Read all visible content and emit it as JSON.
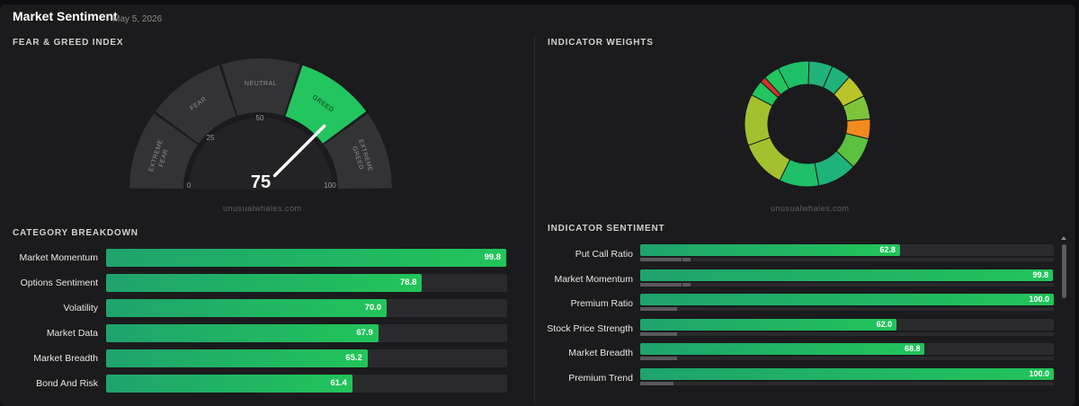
{
  "header": {
    "title": "Market Sentiment",
    "date": "- May 5, 2026"
  },
  "sections": {
    "fear_greed": "FEAR & GREED INDEX",
    "weights": "INDICATOR WEIGHTS",
    "category": "CATEGORY BREAKDOWN",
    "sentiment": "INDICATOR SENTIMENT"
  },
  "watermark": "unusualwhales.com",
  "gauge": {
    "value": 75,
    "value_label": "75",
    "scale": [
      "0",
      "25",
      "50",
      "100"
    ],
    "segments": [
      {
        "label": [
          "EXTREME",
          "FEAR"
        ],
        "color": "#333336"
      },
      {
        "label": [
          "FEAR"
        ],
        "color": "#333336"
      },
      {
        "label": [
          "NEUTRAL"
        ],
        "color": "#333336"
      },
      {
        "label": [
          "GREED"
        ],
        "color": "#22c55e"
      },
      {
        "label": [
          "EXTREME",
          "GREED"
        ],
        "color": "#333336"
      }
    ]
  },
  "chart_data": [
    {
      "type": "gauge",
      "title": "FEAR & GREED INDEX",
      "value": 75,
      "range": [
        0,
        100
      ],
      "zones": [
        "EXTREME FEAR",
        "FEAR",
        "NEUTRAL",
        "GREED",
        "EXTREME GREED"
      ],
      "active_zone": "GREED"
    },
    {
      "type": "pie",
      "title": "INDICATOR WEIGHTS",
      "slices": [
        {
          "value": 13,
          "color": "#a3c02e"
        },
        {
          "value": 4,
          "color": "#22c55e"
        },
        {
          "value": 1.5,
          "color": "#d0342c"
        },
        {
          "value": 4,
          "color": "#22c55e"
        },
        {
          "value": 8,
          "color": "#1fbf6a"
        },
        {
          "value": 6,
          "color": "#1fb37a"
        },
        {
          "value": 5,
          "color": "#1fb37a"
        },
        {
          "value": 6,
          "color": "#b8c42a"
        },
        {
          "value": 6,
          "color": "#7cc43a"
        },
        {
          "value": 5,
          "color": "#f28a1e"
        },
        {
          "value": 8,
          "color": "#5cc040"
        },
        {
          "value": 10,
          "color": "#1fb37a"
        },
        {
          "value": 10,
          "color": "#1fbf6a"
        },
        {
          "value": 12,
          "color": "#a3c02e"
        }
      ]
    },
    {
      "type": "bar",
      "title": "CATEGORY BREAKDOWN",
      "categories": [
        "Market Momentum",
        "Options Sentiment",
        "Volatility",
        "Market Data",
        "Market Breadth",
        "Bond And Risk"
      ],
      "values": [
        99.8,
        78.8,
        70.0,
        67.9,
        65.2,
        61.4
      ],
      "labels": [
        "99.8",
        "78.8",
        "70.0",
        "67.9",
        "65.2",
        "61.4"
      ],
      "xlim": [
        0,
        100
      ]
    },
    {
      "type": "bar",
      "title": "INDICATOR SENTIMENT",
      "categories": [
        "Put Call Ratio",
        "Market Momentum",
        "Premium Ratio",
        "Stock Price Strength",
        "Market Breadth",
        "Premium Trend"
      ],
      "values": [
        62.8,
        99.8,
        100.0,
        62.0,
        68.8,
        100.0
      ],
      "labels": [
        "62.8",
        "99.8",
        "100.0",
        "62.0",
        "68.8",
        "100.0"
      ],
      "weights": [
        10,
        10,
        9,
        9,
        9,
        8
      ],
      "xlim": [
        0,
        100
      ]
    }
  ]
}
